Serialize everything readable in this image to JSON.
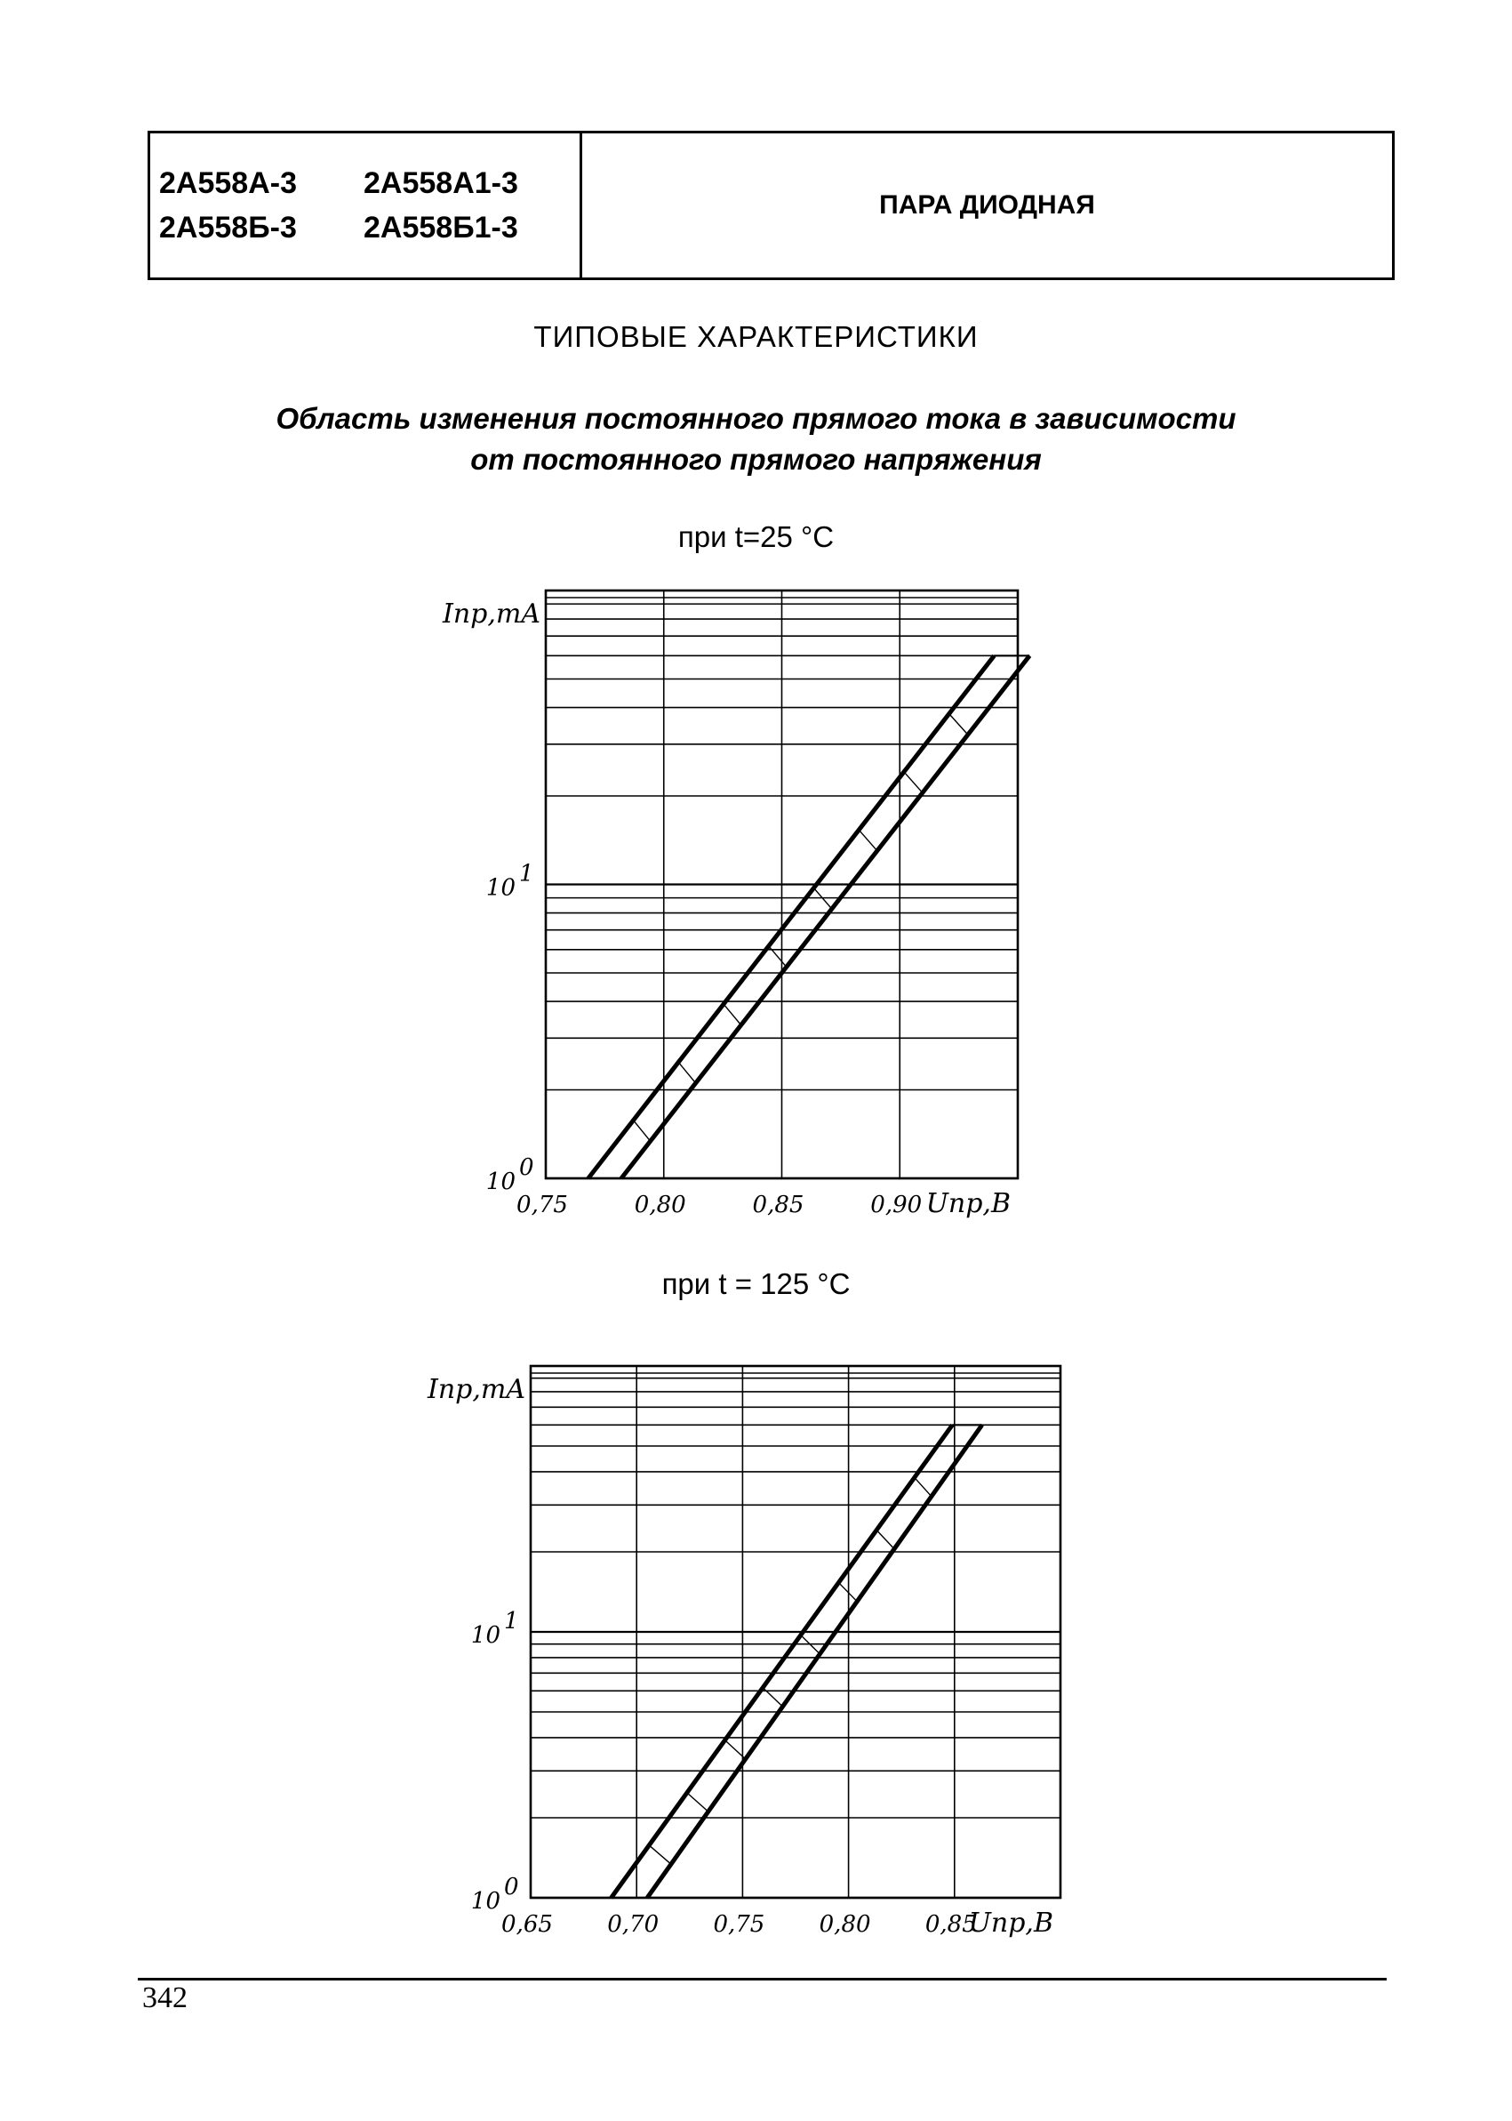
{
  "header": {
    "codes": [
      [
        "2А558А-3",
        "2А558А1-3"
      ],
      [
        "2А558Б-3",
        "2А558Б1-3"
      ]
    ],
    "title": "ПАРА ДИОДНАЯ"
  },
  "section_title": "ТИПОВЫЕ ХАРАКТЕРИСТИКИ",
  "figure_title_lines": [
    "Область изменения постоянного прямого тока в зависимости",
    "от постоянного прямого напряжения"
  ],
  "page_number": "342",
  "chart_data": [
    {
      "type": "area",
      "condition": "при t=25 °C",
      "xlabel": "Uпр,В",
      "ylabel": "Iпр,mA",
      "x_scale": "linear",
      "y_scale": "log",
      "xlim": [
        0.75,
        0.95
      ],
      "ylim": [
        1,
        100
      ],
      "x_ticks": [
        "0,75",
        "0,80",
        "0,85",
        "0,90"
      ],
      "y_ticks": [
        {
          "base": "10",
          "exp": "0",
          "value": 1
        },
        {
          "base": "10",
          "exp": "1",
          "value": 10
        }
      ],
      "grid": true,
      "hatched_band": true,
      "series": [
        {
          "edge": "upper",
          "points": [
            [
              0.768,
              1.0
            ],
            [
              0.94,
              60
            ]
          ]
        },
        {
          "edge": "lower",
          "points": [
            [
              0.782,
              1.0
            ],
            [
              0.955,
              60
            ]
          ]
        }
      ]
    },
    {
      "type": "area",
      "condition": "при t = 125 °C",
      "xlabel": "Uпр,В",
      "ylabel": "Iпр,mA",
      "x_scale": "linear",
      "y_scale": "log",
      "xlim": [
        0.65,
        0.9
      ],
      "ylim": [
        1,
        100
      ],
      "x_ticks": [
        "0,65",
        "0,70",
        "0,75",
        "0,80",
        "0,85"
      ],
      "y_ticks": [
        {
          "base": "10",
          "exp": "0",
          "value": 1
        },
        {
          "base": "10",
          "exp": "1",
          "value": 10
        }
      ],
      "grid": true,
      "hatched_band": true,
      "series": [
        {
          "edge": "upper",
          "points": [
            [
              0.688,
              1.0
            ],
            [
              0.849,
              60
            ]
          ]
        },
        {
          "edge": "lower",
          "points": [
            [
              0.705,
              1.0
            ],
            [
              0.863,
              60
            ]
          ]
        }
      ]
    }
  ]
}
